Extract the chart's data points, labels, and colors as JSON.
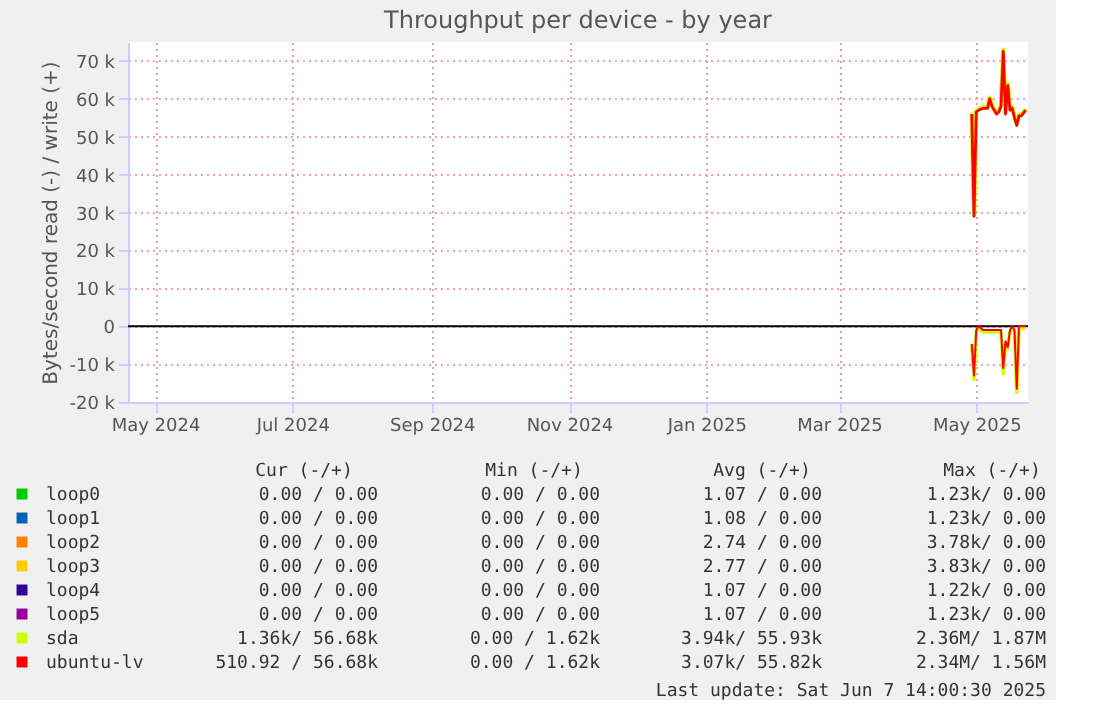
{
  "chart_data": {
    "type": "line",
    "title": "Throughput per device - by year",
    "ylabel": "Bytes/second read (-) / write (+)",
    "x": [
      "2025-05-14",
      "2025-05-15",
      "2025-05-16",
      "2025-05-17",
      "2025-05-19",
      "2025-05-21",
      "2025-05-22",
      "2025-05-23",
      "2025-05-25",
      "2025-05-26",
      "2025-05-27",
      "2025-05-28",
      "2025-05-29",
      "2025-05-30",
      "2025-05-31",
      "2025-06-01",
      "2025-06-02",
      "2025-06-03",
      "2025-06-04",
      "2025-06-05",
      "2025-06-07"
    ],
    "series": [
      {
        "name": "loop0",
        "color": "#00cc00",
        "values": [
          null,
          null,
          null,
          null,
          null,
          null,
          null,
          null,
          null,
          null,
          null,
          null,
          null,
          null,
          null,
          null,
          null,
          null,
          null,
          null,
          null
        ]
      },
      {
        "name": "loop1",
        "color": "#0066b3",
        "values": [
          null,
          null,
          null,
          null,
          null,
          null,
          null,
          null,
          null,
          null,
          null,
          null,
          null,
          null,
          null,
          null,
          null,
          null,
          null,
          null,
          null
        ]
      },
      {
        "name": "loop2",
        "color": "#ff8000",
        "values": [
          null,
          null,
          null,
          null,
          null,
          null,
          null,
          null,
          null,
          null,
          null,
          null,
          null,
          null,
          null,
          null,
          null,
          null,
          null,
          null,
          null
        ]
      },
      {
        "name": "loop3",
        "color": "#ffcc00",
        "values": [
          null,
          null,
          null,
          null,
          null,
          null,
          null,
          null,
          null,
          null,
          null,
          null,
          null,
          null,
          null,
          null,
          null,
          null,
          null,
          null,
          null
        ]
      },
      {
        "name": "loop4",
        "color": "#330099",
        "values": [
          null,
          null,
          null,
          null,
          null,
          null,
          null,
          null,
          null,
          null,
          null,
          null,
          null,
          null,
          null,
          null,
          null,
          null,
          null,
          null,
          null
        ]
      },
      {
        "name": "loop5",
        "color": "#990099",
        "values": [
          null,
          null,
          null,
          null,
          null,
          null,
          null,
          null,
          null,
          null,
          null,
          null,
          null,
          null,
          null,
          null,
          null,
          null,
          null,
          null,
          null
        ]
      },
      {
        "name": "sda",
        "color": "#ccff00",
        "values": [
          56200,
          29500,
          56800,
          57200,
          57800,
          57800,
          60300,
          58300,
          56300,
          56800,
          58300,
          73000,
          56300,
          64000,
          57300,
          57800,
          55300,
          53300,
          55800,
          55800,
          57300
        ]
      },
      {
        "color": "#ccff00",
        "values": [
          -5000,
          -14000,
          -1500,
          -500,
          -1500,
          -1500,
          -1500,
          -1500,
          -1500,
          -1500,
          -1500,
          -12500,
          -4500,
          -6000,
          -1500,
          -500,
          -1500,
          -17500,
          -500,
          -500,
          -500
        ]
      },
      {
        "name": "ubuntu-lv",
        "color": "#ff0000",
        "values": [
          56000,
          29000,
          56500,
          57000,
          57500,
          57500,
          60000,
          58000,
          56000,
          56500,
          58000,
          72500,
          56000,
          63500,
          57000,
          57500,
          55000,
          53000,
          55500,
          55500,
          57000
        ]
      },
      {
        "color": "#ff0000",
        "values": [
          -4700,
          -13000,
          -1000,
          0,
          -1000,
          -1000,
          -1000,
          -1000,
          -1000,
          -1000,
          -1000,
          -11000,
          -4000,
          -5500,
          -1000,
          0,
          -1000,
          -16500,
          0,
          0,
          0
        ]
      }
    ],
    "xlim": [
      "2024-05-04",
      "2025-06-08"
    ],
    "xticks": [
      {
        "value": "2024-05-16",
        "label": "May 2024"
      },
      {
        "value": "2024-07-16",
        "label": "Jul 2024"
      },
      {
        "value": "2024-09-16",
        "label": "Sep 2024"
      },
      {
        "value": "2024-11-16",
        "label": "Nov 2024"
      },
      {
        "value": "2025-01-16",
        "label": "Jan 2025"
      },
      {
        "value": "2025-03-16",
        "label": "Mar 2025"
      },
      {
        "value": "2025-05-16",
        "label": "May 2025"
      }
    ],
    "ylim": [
      -20000,
      75000
    ],
    "yticks": [
      {
        "value": -20000,
        "label": "-20 k"
      },
      {
        "value": -10000,
        "label": "-10 k"
      },
      0,
      {
        "value": 10000,
        "label": "10 k"
      },
      {
        "value": 20000,
        "label": "20 k"
      },
      {
        "value": 30000,
        "label": "30 k"
      },
      {
        "value": 40000,
        "label": "40 k"
      },
      {
        "value": 50000,
        "label": "50 k"
      },
      {
        "value": 60000,
        "label": "60 k"
      },
      {
        "value": 70000,
        "label": "70 k"
      }
    ],
    "ref_lines": [
      {
        "axis": "y",
        "value": 0,
        "color": "#000000"
      }
    ],
    "grid": true,
    "legend": "bottom",
    "annotations": [
      "Cur (-/+)",
      "Min (-/+)",
      "Avg (-/+)",
      "Max (-/+)",
      "0.00 / 0.00",
      "0.00 / 0.00",
      "1.07 / 0.00",
      "1.23k/ 0.00",
      "0.00 / 0.00",
      "0.00 / 0.00",
      "1.08 / 0.00",
      "1.23k/ 0.00",
      "0.00 / 0.00",
      "0.00 / 0.00",
      "2.74 / 0.00",
      "3.78k/ 0.00",
      "0.00 / 0.00",
      "0.00 / 0.00",
      "2.77 / 0.00",
      "3.83k/ 0.00",
      "0.00 / 0.00",
      "0.00 / 0.00",
      "1.07 / 0.00",
      "1.22k/ 0.00",
      "0.00 / 0.00",
      "0.00 / 0.00",
      "1.07 / 0.00",
      "1.23k/ 0.00",
      "1.36k/ 56.68k",
      "0.00 / 1.62k",
      "3.94k/ 55.93k",
      "2.36M/ 1.87M",
      "510.92 / 56.68k",
      "0.00 / 1.62k",
      "3.07k/ 55.82k",
      "2.34M/ 1.56M",
      "Last update: Sat Jun 7 14:00:30 2025"
    ]
  }
}
